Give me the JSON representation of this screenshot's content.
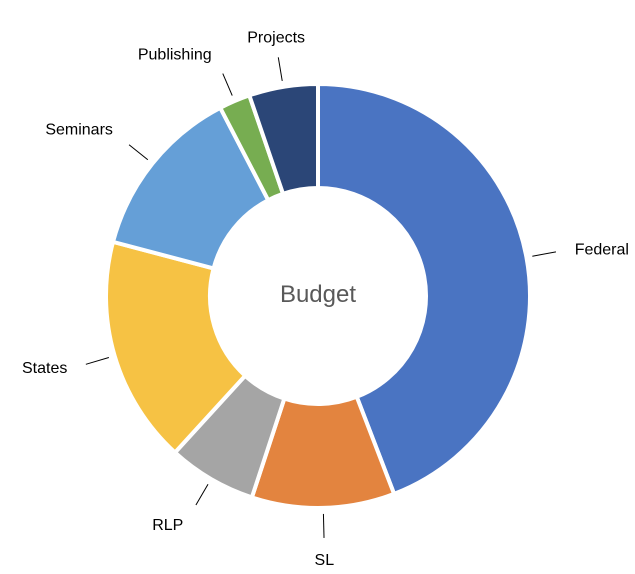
{
  "chart_data": {
    "type": "pie",
    "donut": true,
    "title": "Budget",
    "categories": [
      "Federal",
      "SL",
      "RLP",
      "States",
      "Seminars",
      "Publishing",
      "Projects"
    ],
    "values": [
      44.6,
      11.0,
      6.8,
      17.5,
      13.4,
      2.4,
      5.3
    ],
    "colors": [
      "#4a74c2",
      "#e3843f",
      "#a5a5a5",
      "#f6c244",
      "#659fd7",
      "#77ad51",
      "#2b4677"
    ],
    "start_angle_deg": 0,
    "direction": "clockwise",
    "legend": "none",
    "data_labels": "category-outside"
  }
}
